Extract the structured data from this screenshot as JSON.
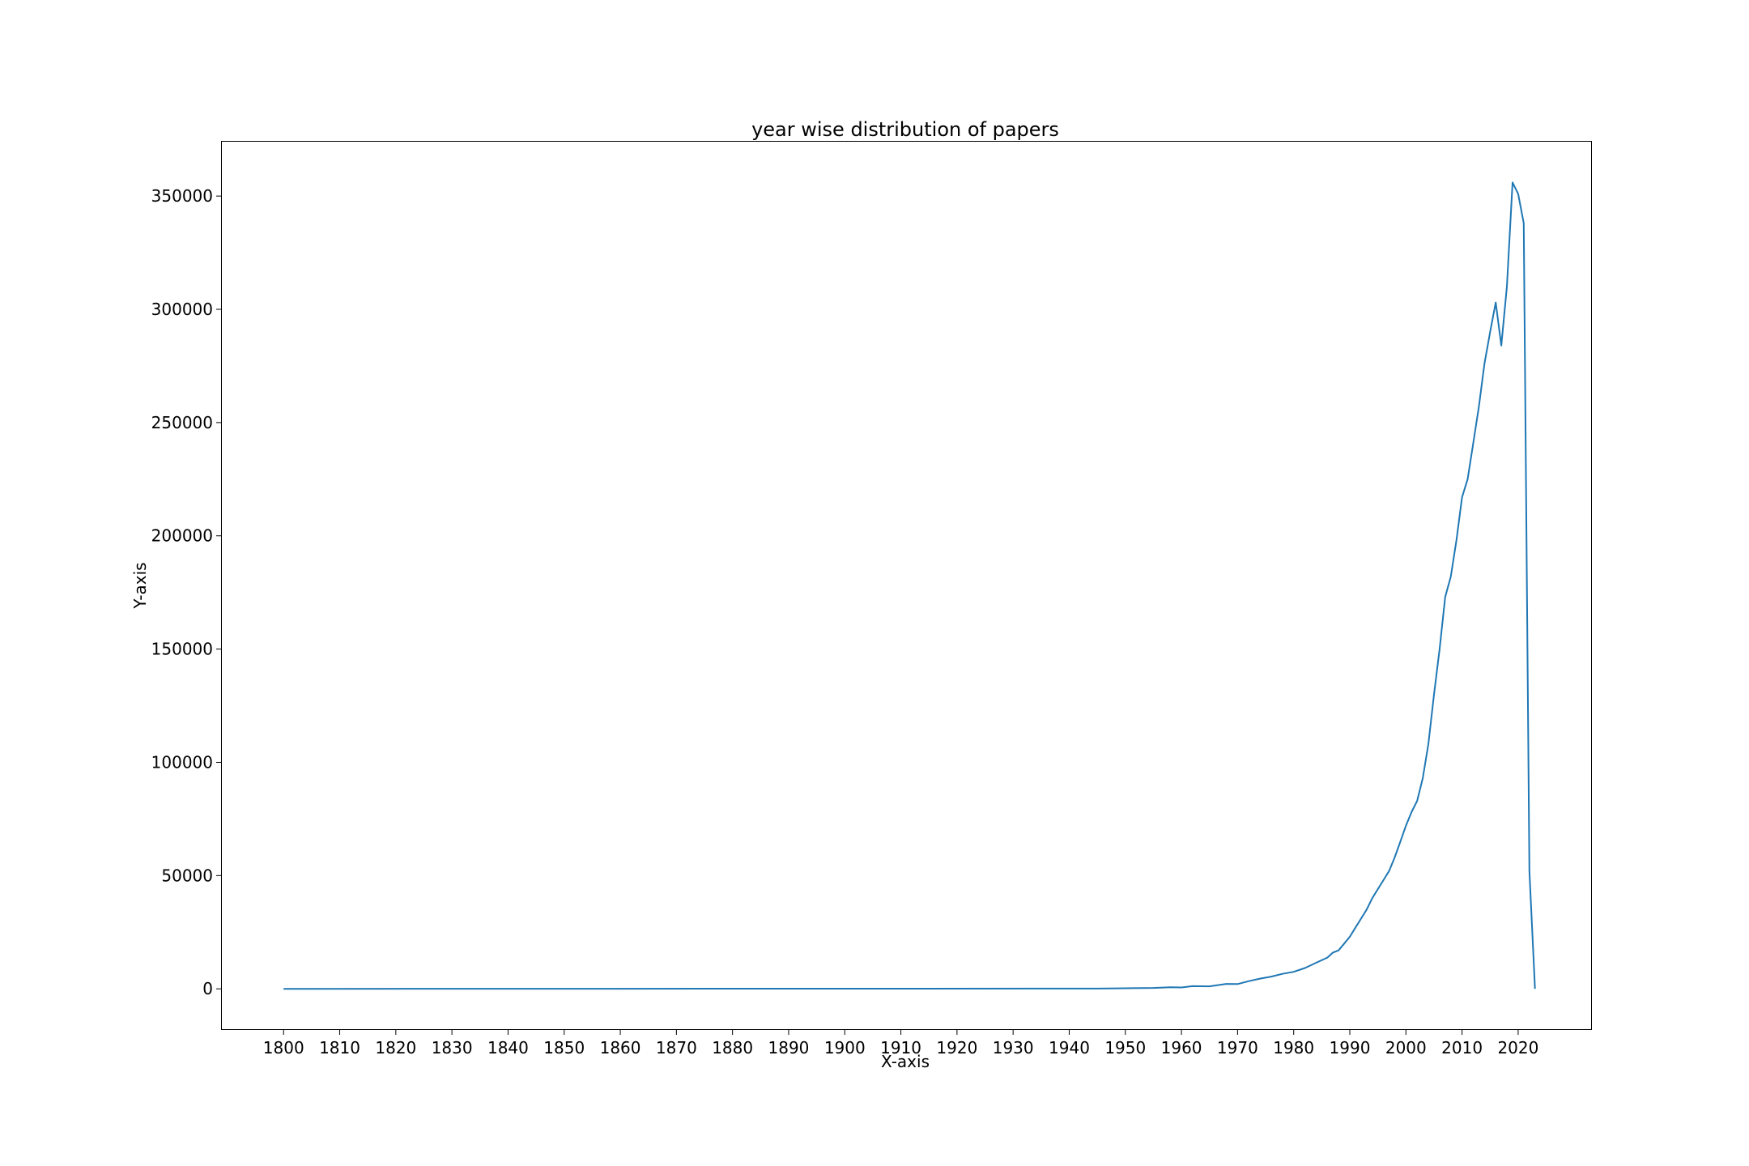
{
  "chart_data": {
    "type": "line",
    "title": "year wise distribution of papers",
    "xlabel": "X-axis",
    "ylabel": "Y-axis",
    "xlim": [
      1789,
      2033
    ],
    "ylim": [
      -17800,
      374000
    ],
    "xticks": [
      1800,
      1810,
      1820,
      1830,
      1840,
      1850,
      1860,
      1870,
      1880,
      1890,
      1900,
      1910,
      1920,
      1930,
      1940,
      1950,
      1960,
      1970,
      1980,
      1990,
      2000,
      2010,
      2020
    ],
    "yticks": [
      0,
      50000,
      100000,
      150000,
      200000,
      250000,
      300000,
      350000
    ],
    "grid": false,
    "legend": "none",
    "series_color": "#1f77b4",
    "points": [
      [
        1800,
        0
      ],
      [
        1945,
        100
      ],
      [
        1950,
        250
      ],
      [
        1955,
        400
      ],
      [
        1958,
        700
      ],
      [
        1960,
        600
      ],
      [
        1962,
        1200
      ],
      [
        1965,
        1100
      ],
      [
        1968,
        2200
      ],
      [
        1970,
        2100
      ],
      [
        1972,
        3400
      ],
      [
        1974,
        4500
      ],
      [
        1976,
        5400
      ],
      [
        1978,
        6600
      ],
      [
        1980,
        7500
      ],
      [
        1982,
        9200
      ],
      [
        1984,
        11500
      ],
      [
        1986,
        13800
      ],
      [
        1987,
        16000
      ],
      [
        1988,
        17000
      ],
      [
        1989,
        20000
      ],
      [
        1990,
        23000
      ],
      [
        1991,
        27000
      ],
      [
        1992,
        31000
      ],
      [
        1993,
        35000
      ],
      [
        1994,
        40000
      ],
      [
        1995,
        44000
      ],
      [
        1996,
        48000
      ],
      [
        1997,
        52000
      ],
      [
        1998,
        58000
      ],
      [
        1999,
        65000
      ],
      [
        2000,
        72000
      ],
      [
        2001,
        78000
      ],
      [
        2002,
        83000
      ],
      [
        2003,
        93000
      ],
      [
        2004,
        108000
      ],
      [
        2005,
        130000
      ],
      [
        2006,
        150000
      ],
      [
        2007,
        173000
      ],
      [
        2008,
        182000
      ],
      [
        2009,
        198000
      ],
      [
        2010,
        217000
      ],
      [
        2011,
        225000
      ],
      [
        2012,
        241000
      ],
      [
        2013,
        257000
      ],
      [
        2014,
        276000
      ],
      [
        2015,
        290000
      ],
      [
        2016,
        303000
      ],
      [
        2017,
        284000
      ],
      [
        2018,
        310000
      ],
      [
        2019,
        356000
      ],
      [
        2020,
        351000
      ],
      [
        2021,
        338000
      ],
      [
        2022,
        52000
      ],
      [
        2023,
        0
      ]
    ]
  }
}
